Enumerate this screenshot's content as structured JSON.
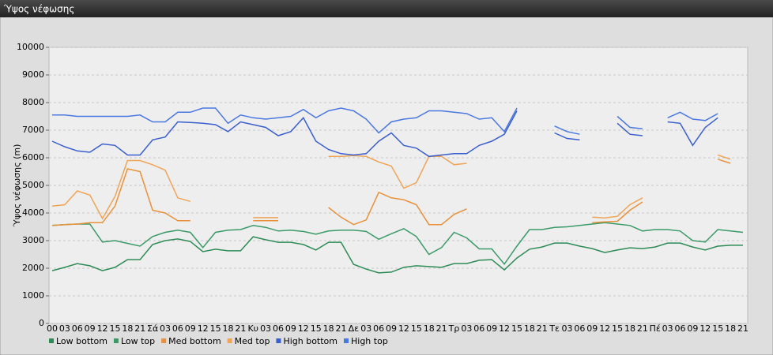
{
  "chart_data": {
    "type": "line",
    "title": "Ύψος νέφωσης",
    "ylabel": "Ύψος νέφωσης (m)",
    "categories": [
      "00",
      "03",
      "06",
      "09",
      "12",
      "15",
      "18",
      "21",
      "Σά",
      "03",
      "06",
      "09",
      "12",
      "15",
      "18",
      "21",
      "Κυ",
      "03",
      "06",
      "09",
      "12",
      "15",
      "18",
      "21",
      "Δε",
      "03",
      "06",
      "09",
      "12",
      "15",
      "18",
      "21",
      "Τρ",
      "03",
      "06",
      "09",
      "12",
      "15",
      "18",
      "21",
      "Τε",
      "03",
      "06",
      "09",
      "12",
      "15",
      "18",
      "21",
      "Πέ",
      "03",
      "06",
      "09",
      "12",
      "15",
      "18",
      "21"
    ],
    "ylim": [
      0,
      10000
    ],
    "yticks": [
      0,
      1000,
      2000,
      3000,
      4000,
      5000,
      6000,
      7000,
      8000,
      9000,
      10000
    ],
    "grid": true,
    "series": [
      {
        "name": "Low bottom",
        "color": "#2e8b57",
        "values": [
          1910,
          2030,
          2170,
          2090,
          1910,
          2030,
          2310,
          2310,
          2860,
          3000,
          3060,
          2970,
          2600,
          2690,
          2630,
          2630,
          3140,
          3030,
          2940,
          2940,
          2860,
          2660,
          2940,
          2940,
          2140,
          1970,
          1830,
          1860,
          2030,
          2090,
          2060,
          2030,
          2170,
          2170,
          2290,
          2310,
          1940,
          2370,
          2690,
          2770,
          2910,
          2910,
          2800,
          2710,
          2570,
          2660,
          2740,
          2710,
          2770,
          2910,
          2910,
          2770,
          2660,
          2800,
          2830,
          2830
        ]
      },
      {
        "name": "Low top",
        "color": "#3a9a68",
        "values": [
          3550,
          3580,
          3600,
          3600,
          2950,
          3000,
          2900,
          2800,
          3150,
          3300,
          3380,
          3300,
          2750,
          3300,
          3380,
          3400,
          3550,
          3480,
          3350,
          3380,
          3330,
          3230,
          3350,
          3380,
          3380,
          3330,
          3050,
          3250,
          3430,
          3150,
          2500,
          2750,
          3300,
          3100,
          2700,
          2700,
          2150,
          2800,
          3400,
          3400,
          3480,
          3500,
          3550,
          3600,
          3650,
          3600,
          3550,
          3350,
          3400,
          3400,
          3350,
          3000,
          2950,
          3400,
          3350,
          3300
        ]
      },
      {
        "name": "Med bottom",
        "color": "#e8913a",
        "values": [
          3550,
          3580,
          3600,
          3650,
          3650,
          4250,
          5600,
          5500,
          4100,
          4000,
          3720,
          3720,
          null,
          null,
          null,
          null,
          3720,
          3720,
          3720,
          null,
          null,
          null,
          4200,
          3850,
          3580,
          3750,
          4750,
          4550,
          4480,
          4300,
          3580,
          3580,
          3950,
          4150,
          null,
          null,
          null,
          null,
          null,
          null,
          null,
          null,
          null,
          3650,
          3680,
          3700,
          4100,
          4400,
          null,
          null,
          null,
          null,
          null,
          5950,
          5800,
          null
        ]
      },
      {
        "name": "Med top",
        "color": "#f0a456",
        "values": [
          4250,
          4300,
          4800,
          4650,
          3800,
          4600,
          5900,
          5900,
          5750,
          5550,
          4550,
          4420,
          null,
          null,
          null,
          null,
          3830,
          3830,
          3830,
          null,
          null,
          null,
          6050,
          6050,
          6080,
          6050,
          5850,
          5700,
          4900,
          5100,
          6050,
          6050,
          5750,
          5800,
          null,
          null,
          null,
          null,
          null,
          null,
          null,
          null,
          null,
          3850,
          3820,
          3880,
          4300,
          4550,
          null,
          null,
          null,
          null,
          null,
          6100,
          5950,
          null
        ]
      },
      {
        "name": "High bottom",
        "color": "#3a5fcd",
        "values": [
          6600,
          6400,
          6250,
          6200,
          6500,
          6450,
          6100,
          6100,
          6650,
          6750,
          7300,
          7280,
          7250,
          7200,
          6950,
          7300,
          7200,
          7100,
          6800,
          6950,
          7450,
          6600,
          6300,
          6150,
          6100,
          6150,
          6600,
          6900,
          6450,
          6350,
          6050,
          6100,
          6150,
          6150,
          6450,
          6600,
          6850,
          7700,
          null,
          null,
          6900,
          6700,
          6650,
          null,
          null,
          7250,
          6850,
          6800,
          null,
          7300,
          7250,
          6450,
          7100,
          7450,
          null,
          null
        ]
      },
      {
        "name": "High top",
        "color": "#4a78e0",
        "values": [
          7550,
          7550,
          7500,
          7500,
          7500,
          7500,
          7500,
          7550,
          7300,
          7300,
          7650,
          7650,
          7800,
          7800,
          7250,
          7550,
          7450,
          7400,
          7450,
          7500,
          7750,
          7450,
          7700,
          7800,
          7700,
          7400,
          6900,
          7300,
          7400,
          7450,
          7700,
          7700,
          7650,
          7600,
          7400,
          7450,
          6950,
          7800,
          null,
          null,
          7150,
          6950,
          6850,
          null,
          null,
          7500,
          7100,
          7050,
          null,
          7450,
          7650,
          7400,
          7350,
          7600,
          null,
          null
        ]
      }
    ]
  }
}
